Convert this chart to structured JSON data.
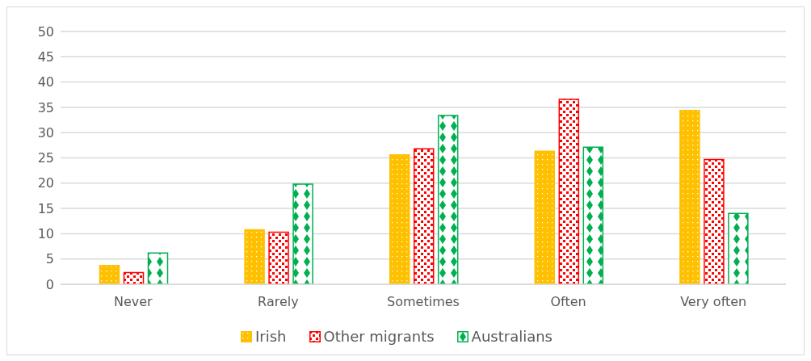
{
  "chart_data": {
    "type": "bar",
    "categories": [
      "Never",
      "Rarely",
      "Sometimes",
      "Often",
      "Very often"
    ],
    "series": [
      {
        "name": "Irish",
        "color": "#ffc000",
        "values": [
          3.7,
          10.8,
          25.6,
          26.3,
          34.4
        ]
      },
      {
        "name": "Other migrants",
        "color": "#ff0000",
        "values": [
          2.3,
          10.3,
          26.8,
          36.6,
          24.7
        ]
      },
      {
        "name": "Australians",
        "color": "#00b050",
        "values": [
          6.2,
          19.8,
          33.4,
          27.1,
          14.0
        ]
      }
    ],
    "ylim": [
      0,
      50
    ],
    "yticks": [
      0,
      5,
      10,
      15,
      20,
      25,
      30,
      35,
      40,
      45,
      50
    ],
    "grid": "y",
    "legend": "bottom"
  }
}
